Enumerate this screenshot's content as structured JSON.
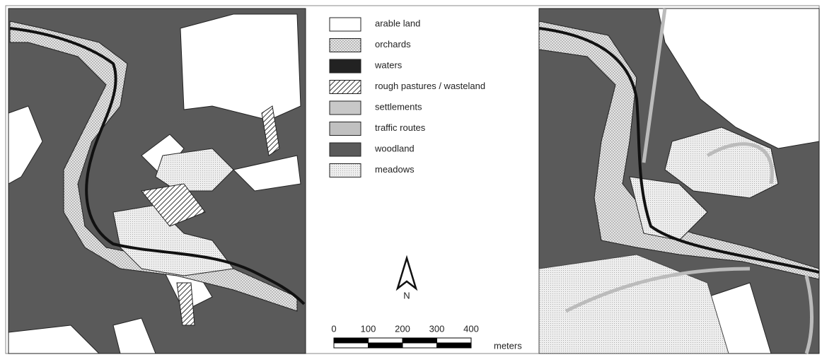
{
  "legend": {
    "items": [
      "arable land",
      "orchards",
      "waters",
      "rough pastures / wasteland",
      "settlements",
      "traffic routes",
      "woodland",
      "meadows"
    ]
  },
  "north_arrow": {
    "label": "N"
  },
  "scale_bar": {
    "ticks": [
      0,
      100,
      200,
      300,
      400
    ],
    "unit": "meters"
  }
}
